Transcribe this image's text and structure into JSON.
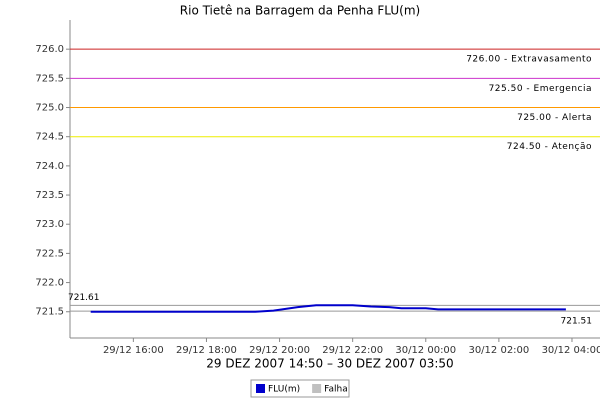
{
  "chart_data": {
    "type": "line",
    "title": "Rio Tietê na Barragem da Penha FLU(m)",
    "subtitle": "29 DEZ 2007 14:50 – 30 DEZ 2007 03:50",
    "x": [
      "29/12 14:50",
      "29/12 15:30",
      "29/12 16:30",
      "29/12 17:30",
      "29/12 18:30",
      "29/12 19:20",
      "29/12 19:50",
      "29/12 20:30",
      "29/12 21:00",
      "29/12 22:00",
      "29/12 22:30",
      "29/12 23:00",
      "29/12 23:20",
      "30/12 00:00",
      "30/12 00:20",
      "30/12 01:00",
      "30/12 02:00",
      "30/12 03:00",
      "30/12 03:50"
    ],
    "series": [
      {
        "name": "FLU(m)",
        "color": "#0000cc",
        "values": [
          721.5,
          721.5,
          721.5,
          721.5,
          721.5,
          721.5,
          721.52,
          721.58,
          721.61,
          721.61,
          721.59,
          721.58,
          721.56,
          721.56,
          721.54,
          721.54,
          721.54,
          721.54,
          721.54
        ]
      },
      {
        "name": "Falha",
        "color": "#c0c0c0",
        "values": [
          null,
          null,
          null,
          null,
          null,
          null,
          null,
          null,
          null,
          null,
          null,
          null,
          null,
          null,
          null,
          null,
          null,
          null,
          null
        ]
      }
    ],
    "xlim": [
      "29/12 14:16",
      "30/12 04:46"
    ],
    "xticks": [
      "29/12 16:00",
      "29/12 18:00",
      "29/12 20:00",
      "29/12 22:00",
      "30/12 00:00",
      "30/12 02:00",
      "30/12 04:00"
    ],
    "ylim": [
      721.05,
      726.5
    ],
    "yticks": [
      721.5,
      {
        "value": 722.0,
        "label": "722.0"
      },
      722.5,
      {
        "value": 723.0,
        "label": "723.0"
      },
      723.5,
      {
        "value": 724.0,
        "label": "724.0"
      },
      724.5,
      {
        "value": 725.0,
        "label": "725.0"
      },
      725.5,
      {
        "value": 726.0,
        "label": "726.0"
      }
    ],
    "thresholds": [
      {
        "value": 726.0,
        "label": "726.00 - Extravasamento",
        "color": "#cc2222"
      },
      {
        "value": 725.5,
        "label": "725.50 - Emergencia",
        "color": "#cc33cc"
      },
      {
        "value": 725.0,
        "label": "725.00 - Alerta",
        "color": "#ff9900"
      },
      {
        "value": 724.5,
        "label": "724.50 - Atenção",
        "color": "#eeee00"
      }
    ],
    "reference_lines": [
      {
        "value": 721.61,
        "label": "721.61",
        "color": "#999999",
        "label_side": "left"
      },
      {
        "value": 721.51,
        "label": "721.51",
        "color": "#999999",
        "label_side": "right"
      }
    ]
  }
}
